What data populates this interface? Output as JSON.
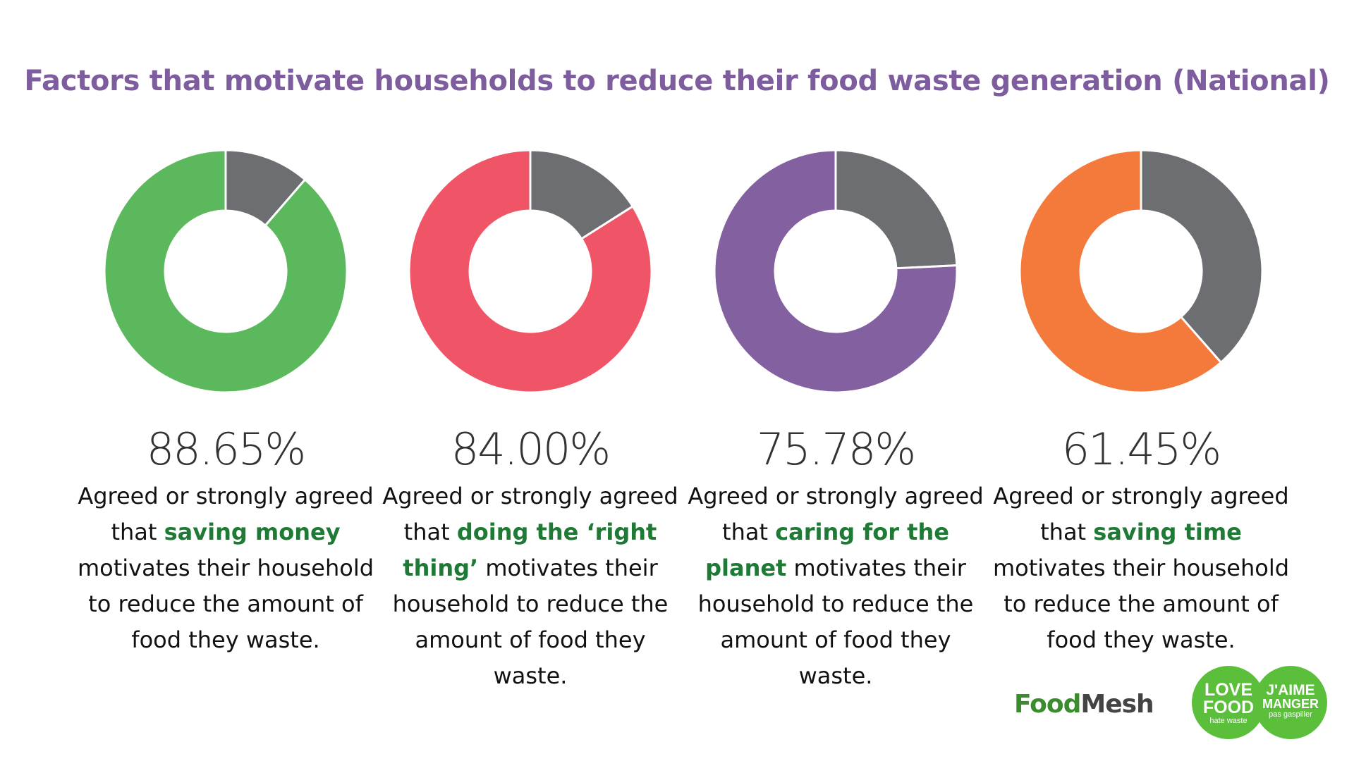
{
  "chart_data": {
    "type": "pie",
    "title": "Factors that motivate households to reduce their food waste generation (National)",
    "charts": [
      {
        "value": 88.65,
        "label": "88.65%",
        "color": "#5cb85c",
        "rest_color": "#6d6e71",
        "description": {
          "pre": "Agreed or strongly agreed that ",
          "highlight": "saving money",
          "post": " motivates their household to reduce the amount of food they waste."
        }
      },
      {
        "value": 84.0,
        "label": "84.00%",
        "color": "#ef5566",
        "rest_color": "#6d6e71",
        "description": {
          "pre": "Agreed or strongly agreed that ",
          "highlight": "doing the ‘right thing’",
          "post": " motivates their household to reduce the amount of food they waste."
        }
      },
      {
        "value": 75.78,
        "label": "75.78%",
        "color": "#83609f",
        "rest_color": "#6d6e71",
        "description": {
          "pre": "Agreed or strongly agreed that ",
          "highlight": "caring for the planet",
          "post": " motivates their household to reduce the amount of food they waste."
        }
      },
      {
        "value": 61.45,
        "label": "61.45%",
        "color": "#f37a3a",
        "rest_color": "#6d6e71",
        "description": {
          "pre": "Agreed or strongly agreed that ",
          "highlight": "saving time",
          "post": " motivates their household to reduce the amount of food they waste."
        }
      }
    ]
  },
  "logos": {
    "foodmesh_1": "Food",
    "foodmesh_2": "Mesh",
    "love_food": [
      "LOVE",
      "FOOD"
    ],
    "love_food_sub": "hate waste",
    "jaime": [
      "J'AIME",
      "MANGER"
    ],
    "jaime_sub": "pas gaspiller"
  }
}
